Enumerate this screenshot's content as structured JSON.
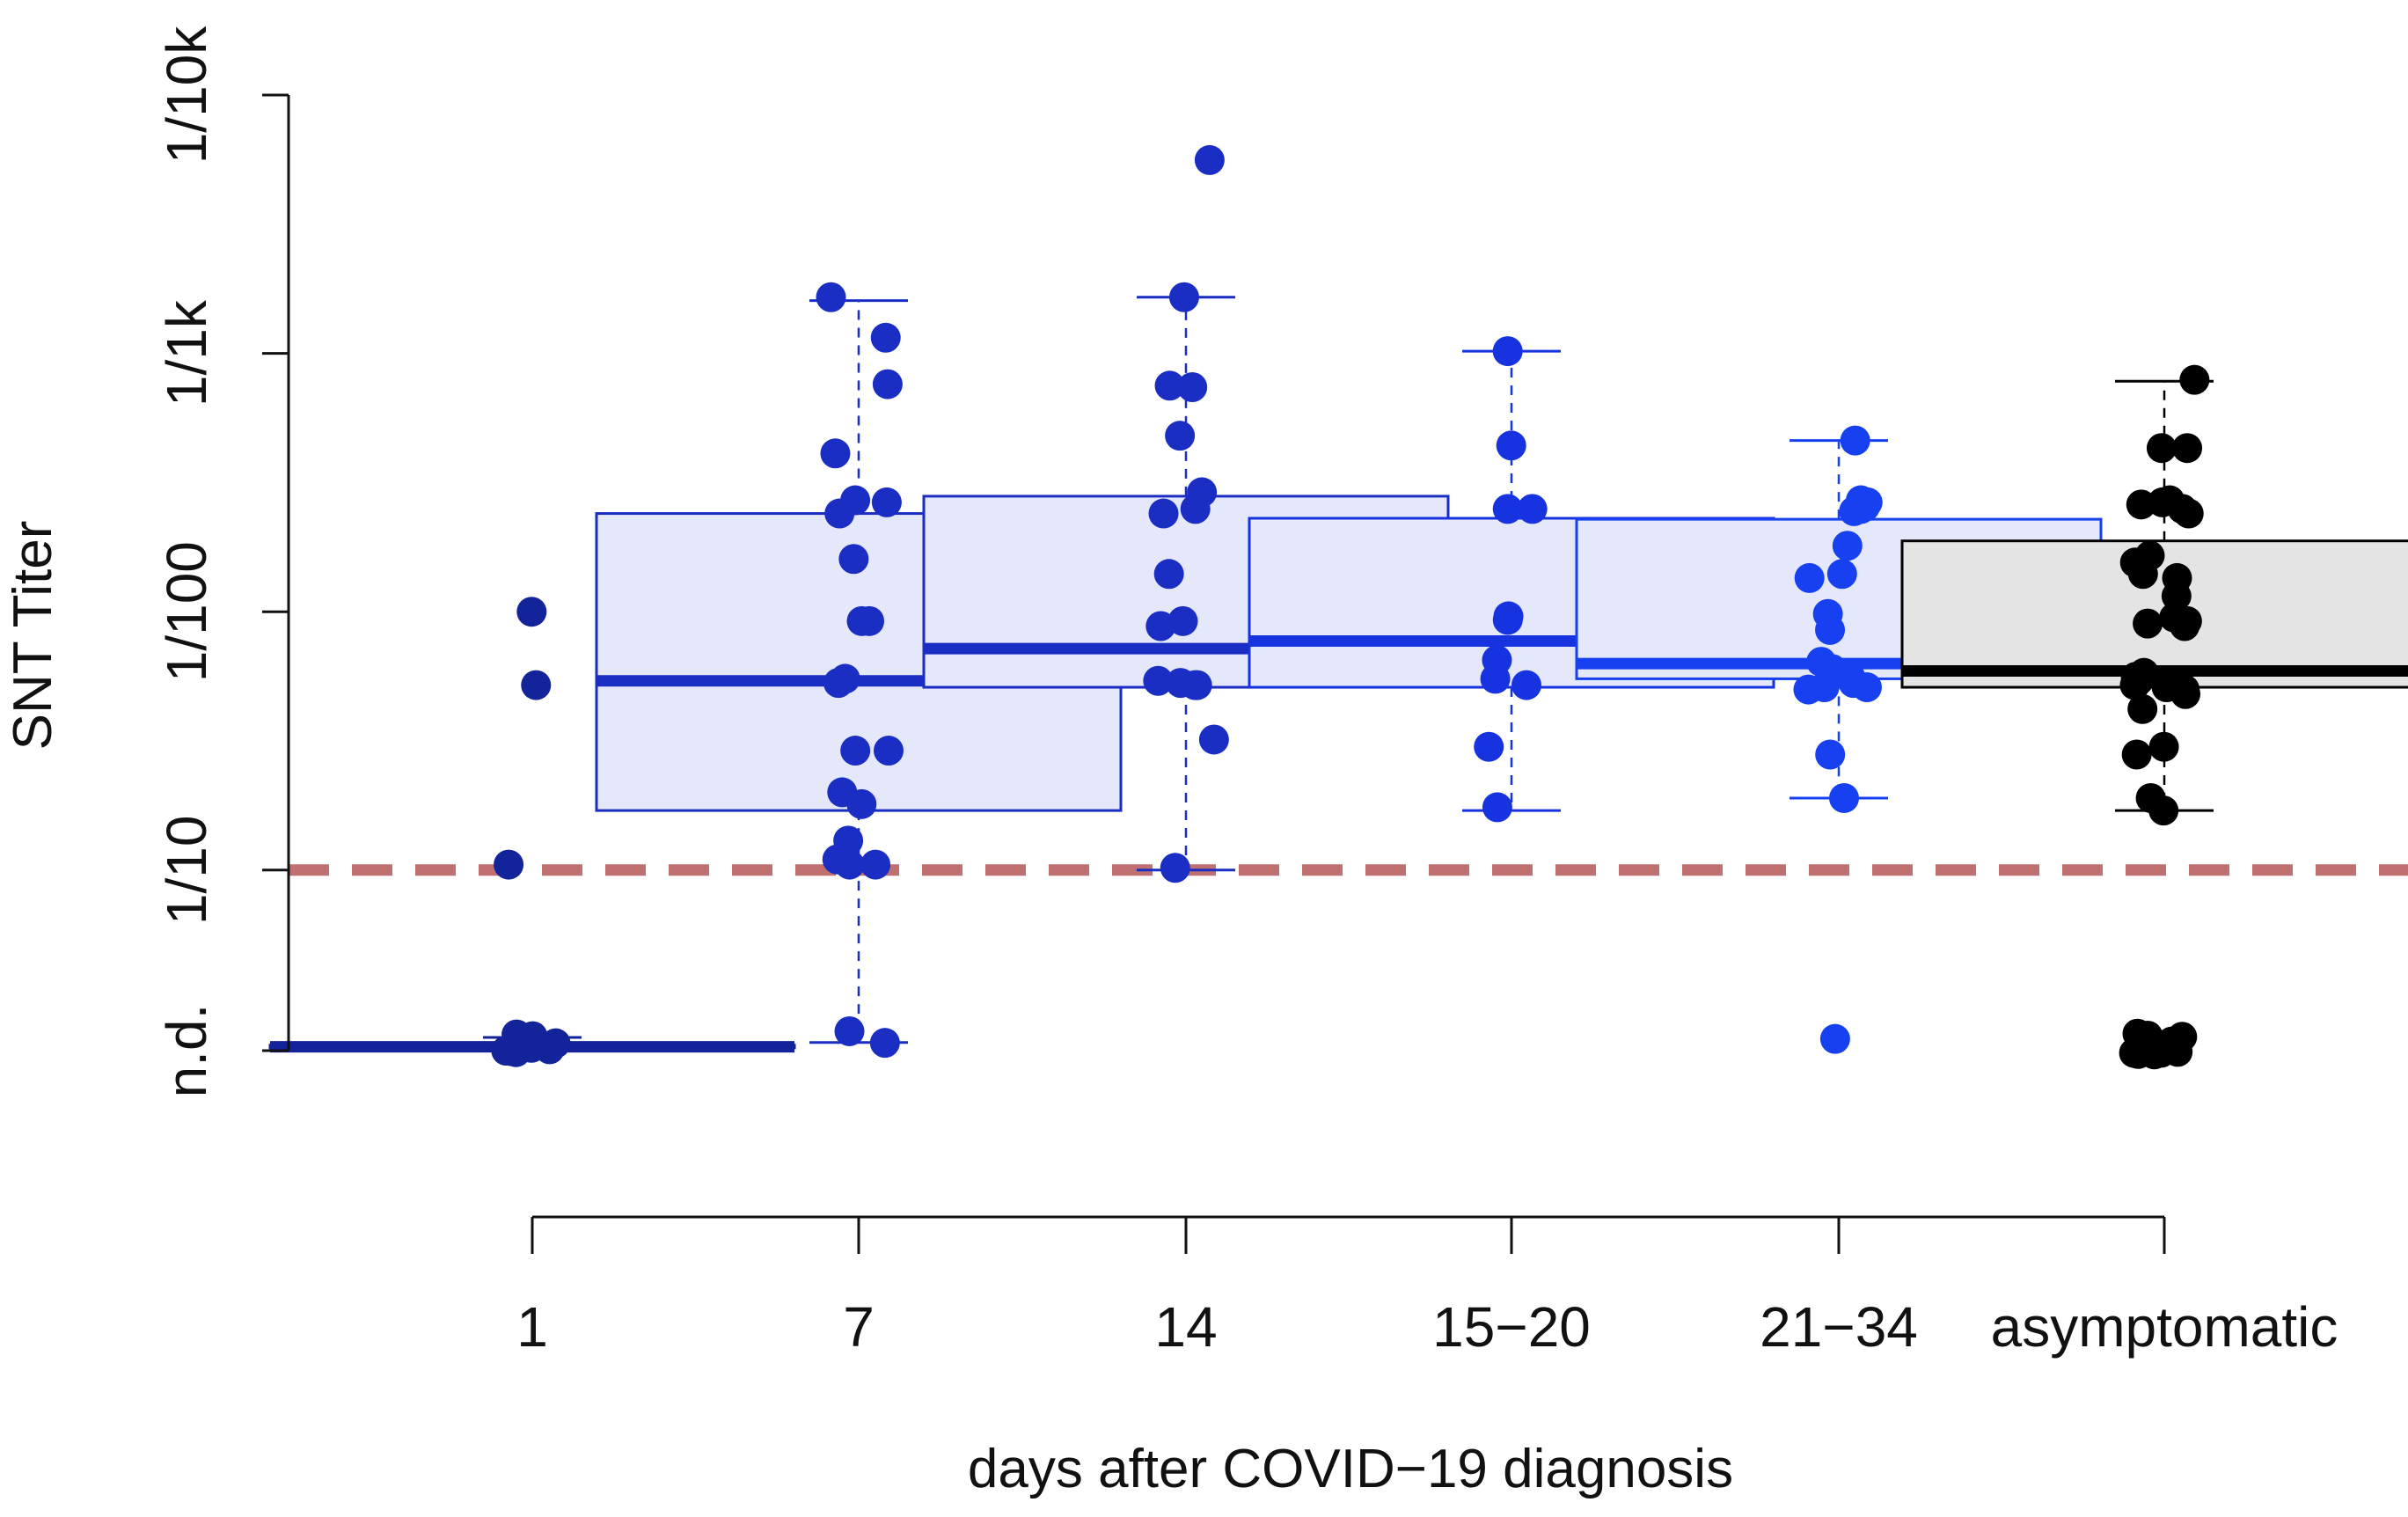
{
  "chart_data": {
    "type": "box",
    "xlabel": "days after COVID−19 diagnosis",
    "ylabel": "SNT Titer",
    "y_scale": "log",
    "y_ticks": [
      {
        "value": 2,
        "label": "n.d."
      },
      {
        "value": 10,
        "label": "1/10"
      },
      {
        "value": 100,
        "label": "1/100"
      },
      {
        "value": 1000,
        "label": "1/1k"
      },
      {
        "value": 10000,
        "label": "1/10k"
      }
    ],
    "ylim": [
      2,
      10000
    ],
    "threshold": {
      "value": 10,
      "color": "#c07070",
      "style": "dashed"
    },
    "categories": [
      "1",
      "7",
      "14",
      "15−20",
      "21−34",
      "asymptomatic"
    ],
    "colors": {
      "axis": "#111111",
      "cat_1": "#13239a",
      "cat_7": "#1a2ec4",
      "cat_14": "#1a2ec4",
      "cat_15_20": "#1733e0",
      "cat_21_34": "#1740f0",
      "asymptomatic": "#000000",
      "box_fill_blue": "#e5e7fa",
      "box_fill_gray": "#e4e4e4"
    },
    "series": [
      {
        "category": "1",
        "stats": {
          "whisker_low": 2.04,
          "q1": 2.05,
          "median": 2.07,
          "q3": 2.1,
          "whisker_high": 2.25
        },
        "points": [
          100,
          52,
          10.5,
          2.3,
          2.2,
          2.15,
          2.1,
          2.05,
          2.0,
          2.0,
          2.0,
          2.0
        ]
      },
      {
        "category": "7",
        "stats": {
          "whisker_low": 2.15,
          "q1": 17,
          "median": 54,
          "q3": 240,
          "whisker_high": 1600
        },
        "points": [
          1650,
          1150,
          760,
          410,
          270,
          265,
          240,
          160,
          92,
          92,
          55,
          53,
          29,
          29,
          20,
          18,
          13,
          11,
          10.5,
          10.5,
          2.3,
          2.1
        ]
      },
      {
        "category": "14",
        "stats": {
          "whisker_low": 10,
          "q1": 51,
          "median": 72,
          "q3": 280,
          "whisker_high": 1650
        },
        "points": [
          5600,
          1650,
          750,
          740,
          480,
          290,
          250,
          240,
          140,
          92,
          88,
          54,
          53,
          52,
          52,
          32,
          10.2
        ]
      },
      {
        "category": "15−20",
        "stats": {
          "whisker_low": 17,
          "q1": 51,
          "median": 77,
          "q3": 230,
          "whisker_high": 1020
        },
        "points": [
          1020,
          440,
          250,
          250,
          96,
          93,
          65,
          55,
          52,
          30,
          17.5
        ]
      },
      {
        "category": "21−34",
        "stats": {
          "whisker_low": 19,
          "q1": 55,
          "median": 63,
          "q3": 228,
          "whisker_high": 460
        },
        "points": [
          460,
          270,
          265,
          255,
          250,
          245,
          180,
          140,
          135,
          98,
          85,
          64,
          60,
          56,
          53,
          51,
          51,
          50,
          28,
          19,
          2.15
        ]
      },
      {
        "category": "asymptomatic",
        "stats": {
          "whisker_low": 17,
          "q1": 51,
          "median": 59,
          "q3": 188,
          "whisker_high": 780
        },
        "points": [
          790,
          430,
          430,
          270,
          265,
          260,
          250,
          240,
          165,
          155,
          140,
          135,
          115,
          95,
          92,
          90,
          88,
          58,
          56,
          54,
          52,
          51,
          50,
          48,
          42,
          30,
          28,
          19,
          17,
          2.3,
          2.25,
          2.2,
          2.15,
          2.1,
          2.05,
          2.0,
          2.0,
          2.0,
          2.0,
          2.0,
          2.0,
          2.0
        ]
      }
    ]
  }
}
